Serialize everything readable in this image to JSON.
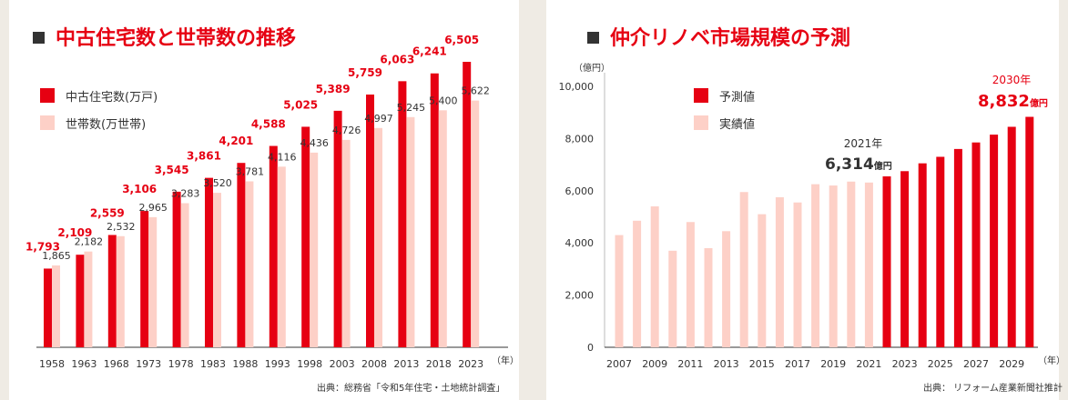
{
  "colors": {
    "primary": "#e60012",
    "secondary": "#fdd0c7",
    "background": "#efebe4",
    "text": "#333333"
  },
  "charts": [
    {
      "title": "中古住宅数と世帯数の推移",
      "source": "出典：総務省「令和5年住宅・土地統計調査」",
      "year_unit": "（年）"
    },
    {
      "title": "仲介リノベ市場規模の予測",
      "source": "出典： リフォーム産業新聞社推計",
      "y_unit": "（億円）",
      "year_unit": "（年）",
      "annotation_2021": {
        "label": "2021年",
        "value": "6,314",
        "unit": "億円"
      },
      "annotation_2030": {
        "label": "2030年",
        "value": "8,832",
        "unit": "億円"
      }
    }
  ],
  "chart_data": [
    {
      "type": "bar",
      "categories": [
        "1958",
        "1963",
        "1968",
        "1973",
        "1978",
        "1983",
        "1988",
        "1993",
        "1998",
        "2003",
        "2008",
        "2013",
        "2018",
        "2023"
      ],
      "series": [
        {
          "name": "中古住宅数(万戸)",
          "values": [
            1793,
            2109,
            2559,
            3106,
            3545,
            3861,
            4201,
            4588,
            5025,
            5389,
            5759,
            6063,
            6241,
            6505
          ],
          "labels": [
            "1,793",
            "2,109",
            "2,559",
            "3,106",
            "3,545",
            "3,861",
            "4,201",
            "4,588",
            "5,025",
            "5,389",
            "5,759",
            "6,063",
            "6,241",
            "6,505"
          ]
        },
        {
          "name": "世帯数(万世帯)",
          "values": [
            1865,
            2182,
            2532,
            2965,
            3283,
            3520,
            3781,
            4116,
            4436,
            4726,
            4997,
            5245,
            5400,
            5622
          ],
          "labels": [
            "1,865",
            "2,182",
            "2,532",
            "2,965",
            "3,283",
            "3,520",
            "3,781",
            "4,116",
            "4,436",
            "4,726",
            "4,997",
            "5,245",
            "5,400",
            "5,622"
          ]
        }
      ],
      "ylim": [
        0,
        6505
      ],
      "grid": false
    },
    {
      "type": "bar",
      "x": [
        "2007",
        "2008",
        "2009",
        "2010",
        "2011",
        "2012",
        "2013",
        "2014",
        "2015",
        "2016",
        "2017",
        "2018",
        "2019",
        "2020",
        "2021",
        "2022",
        "2023",
        "2024",
        "2025",
        "2026",
        "2027",
        "2028",
        "2029",
        "2030"
      ],
      "tick_labels": [
        "2007",
        "2009",
        "2011",
        "2013",
        "2015",
        "2017",
        "2019",
        "2021",
        "2023",
        "2025",
        "2027",
        "2029"
      ],
      "values": [
        4300,
        4850,
        5400,
        3700,
        4800,
        3800,
        4450,
        5950,
        5100,
        5750,
        5550,
        6250,
        6200,
        6350,
        6314,
        6550,
        6750,
        7050,
        7300,
        7600,
        7850,
        8150,
        8450,
        8832
      ],
      "kind": [
        "実績値",
        "実績値",
        "実績値",
        "実績値",
        "実績値",
        "実績値",
        "実績値",
        "実績値",
        "実績値",
        "実績値",
        "実績値",
        "実績値",
        "実績値",
        "実績値",
        "実績値",
        "予測値",
        "予測値",
        "予測値",
        "予測値",
        "予測値",
        "予測値",
        "予測値",
        "予測値",
        "予測値"
      ],
      "legend": [
        "予測値",
        "実績値"
      ],
      "ylim": [
        0,
        10000
      ],
      "yticks": [
        0,
        2000,
        4000,
        6000,
        8000,
        10000
      ],
      "ytick_labels": [
        "0",
        "2,000",
        "4,000",
        "6,000",
        "8,000",
        "10,000"
      ],
      "grid": false
    }
  ]
}
